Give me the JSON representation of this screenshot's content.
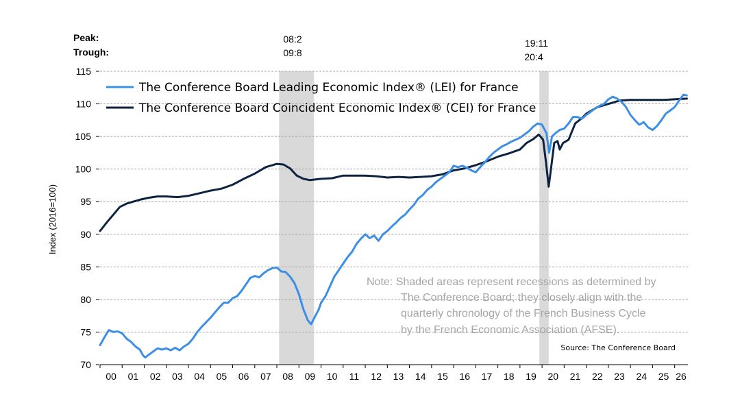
{
  "chart_data": {
    "type": "line",
    "ylabel": "Index (2016=100)",
    "ylim": [
      70,
      115
    ],
    "yticks": [
      70,
      75,
      80,
      85,
      90,
      95,
      100,
      105,
      110,
      115
    ],
    "xlim": [
      2000,
      2026.6
    ],
    "xtick_labels": [
      "00",
      "01",
      "02",
      "03",
      "04",
      "05",
      "06",
      "07",
      "08",
      "09",
      "10",
      "11",
      "12",
      "13",
      "14",
      "15",
      "16",
      "17",
      "18",
      "19",
      "20",
      "21",
      "22",
      "23",
      "24",
      "25",
      "26"
    ],
    "grid": "horizontal dashed",
    "peak_label": "Peak:",
    "trough_label": "Trough:",
    "recessions": [
      {
        "peak": "08:2",
        "trough": "09:8",
        "start": 2008.1,
        "end": 2009.68
      },
      {
        "peak": "19:11",
        "trough": "20:4",
        "start": 2019.88,
        "end": 2020.3
      }
    ],
    "series": [
      {
        "name": "The Conference Board Leading Economic Index® (LEI) for France",
        "color": "#3d8fe6",
        "points": [
          [
            2000.0,
            73.0
          ],
          [
            2000.25,
            74.5
          ],
          [
            2000.4,
            75.3
          ],
          [
            2000.6,
            75.0
          ],
          [
            2000.8,
            75.1
          ],
          [
            2001.0,
            74.8
          ],
          [
            2001.2,
            74.0
          ],
          [
            2001.4,
            73.5
          ],
          [
            2001.6,
            72.8
          ],
          [
            2001.8,
            72.3
          ],
          [
            2001.95,
            71.4
          ],
          [
            2002.05,
            71.1
          ],
          [
            2002.2,
            71.5
          ],
          [
            2002.4,
            72.0
          ],
          [
            2002.6,
            72.5
          ],
          [
            2002.8,
            72.3
          ],
          [
            2003.0,
            72.5
          ],
          [
            2003.2,
            72.2
          ],
          [
            2003.4,
            72.6
          ],
          [
            2003.6,
            72.2
          ],
          [
            2003.8,
            72.8
          ],
          [
            2004.0,
            73.2
          ],
          [
            2004.2,
            74.0
          ],
          [
            2004.4,
            75.0
          ],
          [
            2004.6,
            75.8
          ],
          [
            2004.8,
            76.5
          ],
          [
            2005.0,
            77.2
          ],
          [
            2005.2,
            78.0
          ],
          [
            2005.4,
            78.8
          ],
          [
            2005.6,
            79.5
          ],
          [
            2005.8,
            79.5
          ],
          [
            2006.0,
            80.2
          ],
          [
            2006.2,
            80.5
          ],
          [
            2006.4,
            81.3
          ],
          [
            2006.6,
            82.3
          ],
          [
            2006.8,
            83.3
          ],
          [
            2007.0,
            83.6
          ],
          [
            2007.2,
            83.4
          ],
          [
            2007.4,
            84.0
          ],
          [
            2007.6,
            84.5
          ],
          [
            2007.8,
            84.8
          ],
          [
            2008.0,
            84.9
          ],
          [
            2008.2,
            84.3
          ],
          [
            2008.4,
            84.2
          ],
          [
            2008.6,
            83.5
          ],
          [
            2008.8,
            82.5
          ],
          [
            2009.0,
            80.8
          ],
          [
            2009.2,
            78.5
          ],
          [
            2009.4,
            76.8
          ],
          [
            2009.55,
            76.2
          ],
          [
            2009.7,
            77.2
          ],
          [
            2009.9,
            78.5
          ],
          [
            2010.0,
            79.5
          ],
          [
            2010.2,
            80.5
          ],
          [
            2010.4,
            82.0
          ],
          [
            2010.6,
            83.5
          ],
          [
            2010.8,
            84.5
          ],
          [
            2011.0,
            85.5
          ],
          [
            2011.2,
            86.5
          ],
          [
            2011.4,
            87.3
          ],
          [
            2011.6,
            88.5
          ],
          [
            2011.8,
            89.3
          ],
          [
            2012.0,
            90.0
          ],
          [
            2012.2,
            89.4
          ],
          [
            2012.4,
            89.8
          ],
          [
            2012.6,
            89.0
          ],
          [
            2012.8,
            90.0
          ],
          [
            2013.0,
            90.5
          ],
          [
            2013.2,
            91.2
          ],
          [
            2013.4,
            91.8
          ],
          [
            2013.6,
            92.5
          ],
          [
            2013.8,
            93.0
          ],
          [
            2014.0,
            93.8
          ],
          [
            2014.2,
            94.5
          ],
          [
            2014.4,
            95.5
          ],
          [
            2014.6,
            96.0
          ],
          [
            2014.8,
            96.8
          ],
          [
            2015.0,
            97.3
          ],
          [
            2015.2,
            98.0
          ],
          [
            2015.4,
            98.5
          ],
          [
            2015.6,
            99.0
          ],
          [
            2015.8,
            99.5
          ],
          [
            2016.0,
            100.5
          ],
          [
            2016.2,
            100.3
          ],
          [
            2016.4,
            100.5
          ],
          [
            2016.6,
            100.2
          ],
          [
            2016.8,
            99.8
          ],
          [
            2017.0,
            99.5
          ],
          [
            2017.2,
            100.3
          ],
          [
            2017.4,
            101.0
          ],
          [
            2017.6,
            101.8
          ],
          [
            2017.8,
            102.5
          ],
          [
            2018.0,
            103.0
          ],
          [
            2018.2,
            103.5
          ],
          [
            2018.4,
            103.8
          ],
          [
            2018.6,
            104.2
          ],
          [
            2018.8,
            104.5
          ],
          [
            2019.0,
            104.8
          ],
          [
            2019.2,
            105.3
          ],
          [
            2019.4,
            105.8
          ],
          [
            2019.6,
            106.5
          ],
          [
            2019.8,
            107.0
          ],
          [
            2020.0,
            106.8
          ],
          [
            2020.2,
            105.5
          ],
          [
            2020.32,
            102.5
          ],
          [
            2020.45,
            105.0
          ],
          [
            2020.6,
            105.5
          ],
          [
            2020.8,
            106.0
          ],
          [
            2021.0,
            106.2
          ],
          [
            2021.2,
            107.0
          ],
          [
            2021.4,
            108.0
          ],
          [
            2021.6,
            108.0
          ],
          [
            2021.8,
            107.7
          ],
          [
            2022.0,
            108.3
          ],
          [
            2022.2,
            108.8
          ],
          [
            2022.4,
            109.3
          ],
          [
            2022.6,
            109.7
          ],
          [
            2022.8,
            110.0
          ],
          [
            2023.0,
            110.7
          ],
          [
            2023.2,
            111.1
          ],
          [
            2023.4,
            110.8
          ],
          [
            2023.6,
            110.3
          ],
          [
            2023.8,
            109.5
          ],
          [
            2024.0,
            108.3
          ],
          [
            2024.2,
            107.5
          ],
          [
            2024.4,
            106.8
          ],
          [
            2024.6,
            107.2
          ],
          [
            2024.8,
            106.4
          ],
          [
            2025.0,
            106.0
          ],
          [
            2025.2,
            106.6
          ],
          [
            2025.4,
            107.5
          ],
          [
            2025.6,
            108.5
          ],
          [
            2025.8,
            109.0
          ],
          [
            2026.0,
            109.5
          ],
          [
            2026.2,
            110.5
          ],
          [
            2026.4,
            111.4
          ],
          [
            2026.55,
            111.3
          ]
        ]
      },
      {
        "name": "The Conference Board Coincident Economic Index® (CEI) for France",
        "color": "#0d2341",
        "points": [
          [
            2000.0,
            90.5
          ],
          [
            2000.3,
            91.8
          ],
          [
            2000.6,
            93.0
          ],
          [
            2000.9,
            94.2
          ],
          [
            2001.2,
            94.7
          ],
          [
            2001.5,
            95.0
          ],
          [
            2001.8,
            95.3
          ],
          [
            2002.2,
            95.6
          ],
          [
            2002.6,
            95.8
          ],
          [
            2003.0,
            95.8
          ],
          [
            2003.5,
            95.7
          ],
          [
            2004.0,
            95.9
          ],
          [
            2004.5,
            96.3
          ],
          [
            2005.0,
            96.7
          ],
          [
            2005.5,
            97.0
          ],
          [
            2006.0,
            97.6
          ],
          [
            2006.5,
            98.5
          ],
          [
            2007.0,
            99.3
          ],
          [
            2007.5,
            100.3
          ],
          [
            2008.0,
            100.8
          ],
          [
            2008.3,
            100.7
          ],
          [
            2008.6,
            100.1
          ],
          [
            2008.9,
            99.0
          ],
          [
            2009.2,
            98.5
          ],
          [
            2009.5,
            98.3
          ],
          [
            2010.0,
            98.5
          ],
          [
            2010.5,
            98.6
          ],
          [
            2011.0,
            99.0
          ],
          [
            2011.5,
            99.0
          ],
          [
            2012.0,
            99.0
          ],
          [
            2012.5,
            98.9
          ],
          [
            2013.0,
            98.7
          ],
          [
            2013.5,
            98.8
          ],
          [
            2014.0,
            98.7
          ],
          [
            2014.5,
            98.8
          ],
          [
            2015.0,
            98.9
          ],
          [
            2015.5,
            99.2
          ],
          [
            2016.0,
            99.8
          ],
          [
            2016.5,
            100.1
          ],
          [
            2017.0,
            100.6
          ],
          [
            2017.5,
            101.2
          ],
          [
            2018.0,
            101.9
          ],
          [
            2018.5,
            102.4
          ],
          [
            2019.0,
            103.0
          ],
          [
            2019.3,
            104.0
          ],
          [
            2019.6,
            104.6
          ],
          [
            2019.85,
            105.3
          ],
          [
            2020.05,
            104.5
          ],
          [
            2020.18,
            101.0
          ],
          [
            2020.3,
            97.3
          ],
          [
            2020.42,
            100.5
          ],
          [
            2020.55,
            104.0
          ],
          [
            2020.7,
            104.3
          ],
          [
            2020.8,
            103.0
          ],
          [
            2020.95,
            104.0
          ],
          [
            2021.2,
            104.5
          ],
          [
            2021.5,
            107.0
          ],
          [
            2021.8,
            107.8
          ],
          [
            2022.0,
            108.5
          ],
          [
            2022.5,
            109.5
          ],
          [
            2023.0,
            110.0
          ],
          [
            2023.5,
            110.5
          ],
          [
            2024.0,
            110.6
          ],
          [
            2024.5,
            110.6
          ],
          [
            2025.0,
            110.6
          ],
          [
            2025.5,
            110.6
          ],
          [
            2026.0,
            110.7
          ],
          [
            2026.55,
            110.8
          ]
        ]
      }
    ],
    "note_lines": [
      "Note: Shaded areas represent recessions as determined by",
      "The Conference Board; they closely align with the",
      "quarterly chronology of the French Business Cycle",
      "by the French Economic Association (AFSE)."
    ],
    "source": "Source: The Conference Board"
  }
}
